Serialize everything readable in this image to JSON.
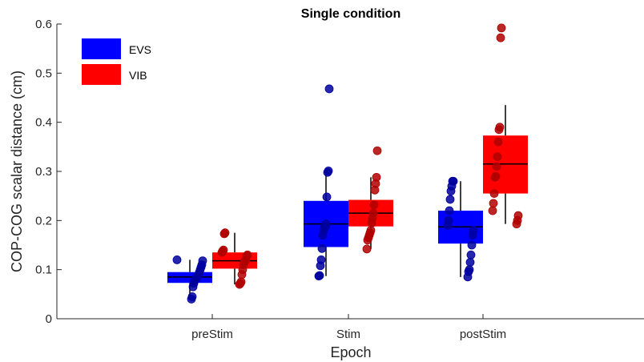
{
  "chart_data": {
    "type": "box",
    "title": "Single condition",
    "xlabel": "Epoch",
    "ylabel": "COP-COG scalar distance (cm)",
    "categories": [
      "preStim",
      "Stim",
      "postStim"
    ],
    "ylim": [
      0,
      0.6
    ],
    "yticks": [
      "0",
      "0.1",
      "0.2",
      "0.3",
      "0.4",
      "0.5",
      "0.6"
    ],
    "grid": false,
    "legend_position": "top-left",
    "series": [
      {
        "name": "EVS",
        "color": "#0000ff",
        "point_color": "#00009f",
        "boxes": [
          {
            "category": "preStim",
            "whisker_low": 0.04,
            "q1": 0.073,
            "median": 0.085,
            "q3": 0.095,
            "whisker_high": 0.12
          },
          {
            "category": "Stim",
            "whisker_low": 0.087,
            "q1": 0.146,
            "median": 0.193,
            "q3": 0.24,
            "whisker_high": 0.301
          },
          {
            "category": "postStim",
            "whisker_low": 0.085,
            "q1": 0.153,
            "median": 0.187,
            "q3": 0.22,
            "whisker_high": 0.28
          }
        ],
        "points": [
          [
            0.12,
            0.118,
            0.11,
            0.105,
            0.1,
            0.095,
            0.09,
            0.088,
            0.085,
            0.082,
            0.08,
            0.078,
            0.072,
            0.065,
            0.045,
            0.04
          ],
          [
            0.468,
            0.301,
            0.298,
            0.248,
            0.193,
            0.188,
            0.185,
            0.18,
            0.17,
            0.143,
            0.12,
            0.108,
            0.088,
            0.087
          ],
          [
            0.28,
            0.28,
            0.27,
            0.26,
            0.243,
            0.22,
            0.2,
            0.19,
            0.18,
            0.17,
            0.15,
            0.13,
            0.115,
            0.1,
            0.096,
            0.085
          ]
        ]
      },
      {
        "name": "VIB",
        "color": "#ff0000",
        "point_color": "#b00000",
        "boxes": [
          {
            "category": "preStim",
            "whisker_low": 0.07,
            "q1": 0.102,
            "median": 0.118,
            "q3": 0.135,
            "whisker_high": 0.175
          },
          {
            "category": "Stim",
            "whisker_low": 0.142,
            "q1": 0.188,
            "median": 0.215,
            "q3": 0.242,
            "whisker_high": 0.288
          },
          {
            "category": "postStim",
            "whisker_low": 0.193,
            "q1": 0.255,
            "median": 0.315,
            "q3": 0.373,
            "whisker_high": 0.435
          }
        ],
        "points": [
          [
            0.175,
            0.173,
            0.14,
            0.138,
            0.135,
            0.13,
            0.128,
            0.12,
            0.118,
            0.115,
            0.11,
            0.1,
            0.09,
            0.075,
            0.072,
            0.07
          ],
          [
            0.342,
            0.288,
            0.275,
            0.262,
            0.232,
            0.215,
            0.205,
            0.195,
            0.18,
            0.175,
            0.17,
            0.165,
            0.16,
            0.142
          ],
          [
            0.592,
            0.572,
            0.39,
            0.385,
            0.36,
            0.33,
            0.31,
            0.29,
            0.288,
            0.255,
            0.235,
            0.22,
            0.21,
            0.2,
            0.193
          ]
        ]
      }
    ]
  }
}
